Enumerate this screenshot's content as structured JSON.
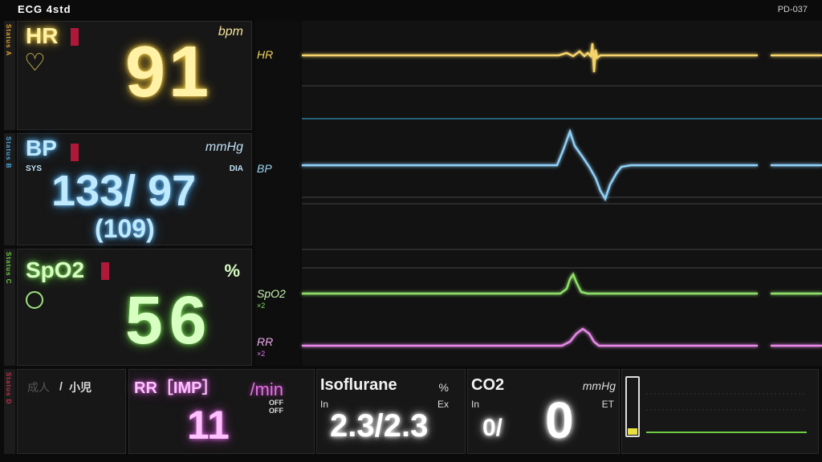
{
  "header": {
    "title": "ECG 4std",
    "device_id": "PD-037"
  },
  "status_strips": [
    "Status A",
    "Status B",
    "Status C",
    "Status D"
  ],
  "hr": {
    "label": "HR",
    "unit": "bpm",
    "value": "91",
    "color": "#ffd84a"
  },
  "bp": {
    "label": "BP",
    "unit": "mmHg",
    "sys_label": "SYS",
    "dia_label": "DIA",
    "value": "133/ 97",
    "mean": "(109)",
    "color": "#6fc7ff"
  },
  "spo2": {
    "label": "SpO2",
    "unit": "%",
    "value": "56",
    "color": "#7fe05c"
  },
  "waveforms": {
    "hr_label": "HR",
    "bp_label": "BP",
    "spo2_label": "SpO2",
    "spo2_scale": "×2",
    "rr_label": "RR",
    "rr_scale": "×2"
  },
  "bottom": {
    "patient_adult": "成人",
    "patient_sep": "/",
    "patient_child": "小児",
    "rr": {
      "label": "RR［IMP］",
      "unit": "/min",
      "off1": "OFF",
      "off2": "OFF",
      "value": "11",
      "color": "#e86fe8"
    },
    "iso": {
      "label": "Isoflurane",
      "unit": "%",
      "in_label": "In",
      "ex_label": "Ex",
      "value": "2.3/2.3"
    },
    "co2": {
      "label": "CO2",
      "unit": "mmHg",
      "in_label": "In",
      "et_label": "ET",
      "in_value": "0/",
      "et_value": "0"
    }
  }
}
